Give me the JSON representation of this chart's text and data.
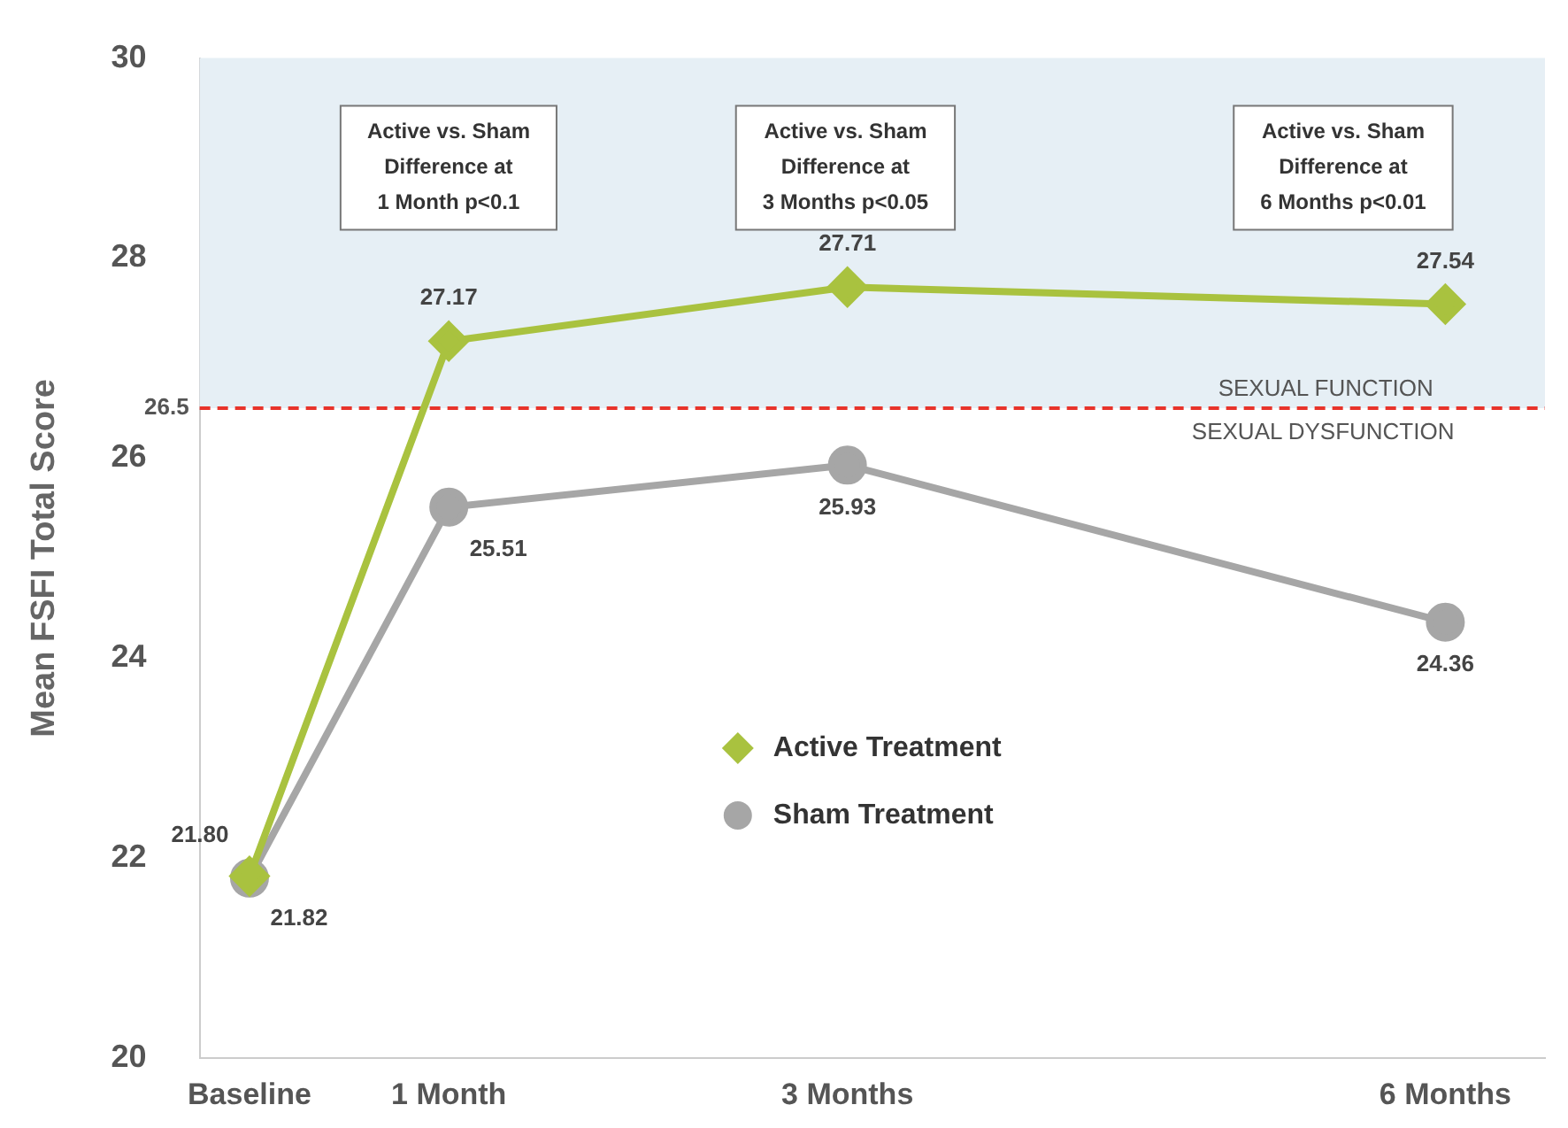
{
  "chart_data": {
    "type": "line",
    "ylabel": "Mean FSFI Total Score",
    "x": [
      0,
      1,
      3,
      6
    ],
    "xlim": [
      -0.25,
      6.5
    ],
    "xticks": [
      {
        "value": 0,
        "label": "Baseline"
      },
      {
        "value": 1,
        "label": "1 Month"
      },
      {
        "value": 3,
        "label": "3 Months"
      },
      {
        "value": 6,
        "label": "6 Months"
      }
    ],
    "ylim": [
      20,
      30
    ],
    "yticks": [
      20,
      22,
      24,
      26,
      28,
      30
    ],
    "series": [
      {
        "name": "Active Treatment",
        "color": "#a9c23f",
        "marker": "diamond",
        "values": [
          21.82,
          27.17,
          27.71,
          27.54
        ],
        "value_labels": [
          "21.82",
          "27.17",
          "27.71",
          "27.54"
        ]
      },
      {
        "name": "Sham Treatment",
        "color": "#a6a6a6",
        "marker": "circle",
        "values": [
          21.8,
          25.51,
          25.93,
          24.36
        ],
        "value_labels": [
          "21.80",
          "25.51",
          "25.93",
          "24.36"
        ]
      }
    ],
    "ref_lines": [
      {
        "axis": "y",
        "value": 26.5,
        "label": "26.5",
        "color": "#e8332a",
        "line_style": "dashed"
      }
    ],
    "bands": [
      {
        "axis": "y",
        "from": 26.5,
        "to": 30,
        "label": "SEXUAL FUNCTION",
        "color": "#e6eff5"
      }
    ],
    "annotations": [
      "Active vs. Sham\nDifference at\n1 Month p<0.1",
      "Active vs. Sham\nDifference at\n3 Months p<0.05",
      "Active vs. Sham\nDifference at\n6 Months p<0.01",
      "SEXUAL DYSFUNCTION"
    ],
    "legend": "center",
    "grid": false
  }
}
